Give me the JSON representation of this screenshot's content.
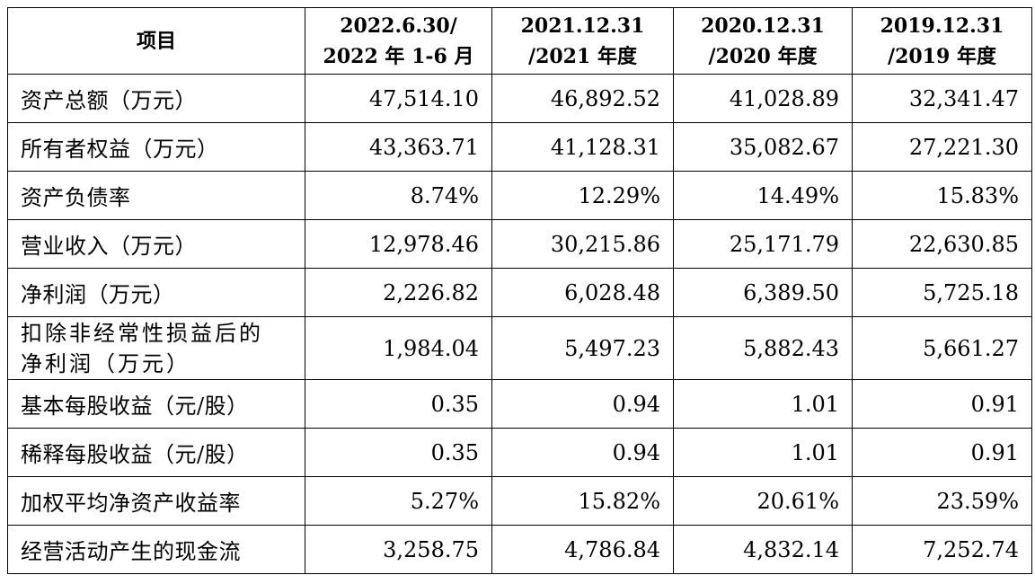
{
  "headers": [
    [
      "项目"
    ],
    [
      "2022.6.30/",
      "2022 年 1-6 月"
    ],
    [
      "2021.12.31",
      "/2021 年度"
    ],
    [
      "2020.12.31",
      "/2020 年度"
    ],
    [
      "2019.12.31",
      "/2019 年度"
    ]
  ],
  "rows": [
    {
      "label": [
        "资产总额（万元）"
      ],
      "values": [
        "47,514.10",
        "46,892.52",
        "41,028.89",
        "32,341.47"
      ]
    },
    {
      "label": [
        "所有者权益（万元）"
      ],
      "values": [
        "43,363.71",
        "41,128.31",
        "35,082.67",
        "27,221.30"
      ]
    },
    {
      "label": [
        "资产负债率"
      ],
      "values": [
        "8.74%",
        "12.29%",
        "14.49%",
        "15.83%"
      ]
    },
    {
      "label": [
        "营业收入（万元）"
      ],
      "values": [
        "12,978.46",
        "30,215.86",
        "25,171.79",
        "22,630.85"
      ]
    },
    {
      "label": [
        "净利润（万元）"
      ],
      "values": [
        "2,226.82",
        "6,028.48",
        "6,389.50",
        "5,725.18"
      ]
    },
    {
      "label": [
        "扣除非经常性损益后的",
        "净利润（万元）"
      ],
      "values": [
        "1,984.04",
        "5,497.23",
        "5,882.43",
        "5,661.27"
      ]
    },
    {
      "label": [
        "基本每股收益（元/股）"
      ],
      "values": [
        "0.35",
        "0.94",
        "1.01",
        "0.91"
      ]
    },
    {
      "label": [
        "稀释每股收益（元/股）"
      ],
      "values": [
        "0.35",
        "0.94",
        "1.01",
        "0.91"
      ]
    },
    {
      "label": [
        "加权平均净资产收益率"
      ],
      "values": [
        "5.27%",
        "15.82%",
        "20.61%",
        "23.59%"
      ]
    },
    {
      "label": [
        "经营活动产生的现金流"
      ],
      "values": [
        "3,258.75",
        "4,786.84",
        "4,832.14",
        "7,252.74"
      ]
    }
  ]
}
